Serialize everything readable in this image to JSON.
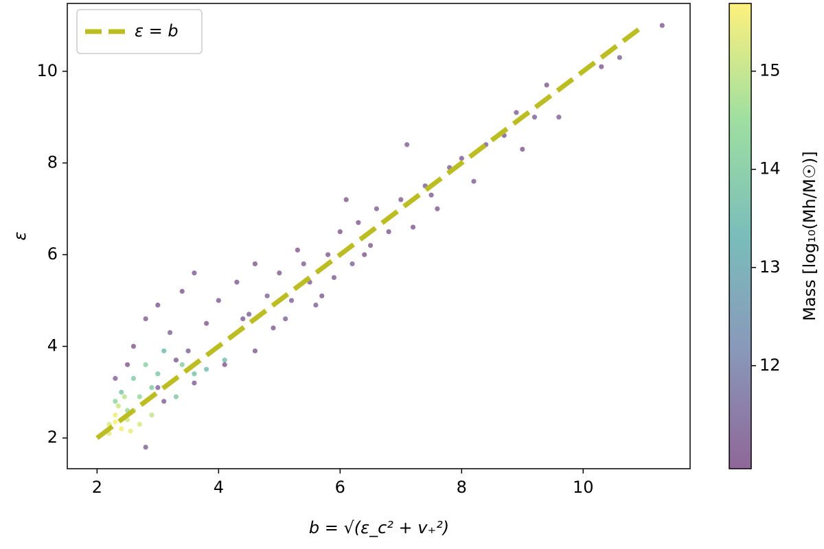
{
  "chart_data": {
    "type": "scatter",
    "x_label": "b = √(ε_c² + v₊²)",
    "y_label": "ε",
    "colorbar_label": "Mass [log₁₀(Mh/M☉)]",
    "colormap": "viridis",
    "alpha": 0.55,
    "x": [
      2.6,
      2.8,
      3.0,
      3.2,
      3.4,
      3.6,
      3.5,
      3.8,
      4.0,
      4.2,
      4.3,
      4.5,
      4.6,
      4.8,
      4.9,
      5.0,
      5.2,
      5.3,
      5.5,
      5.6,
      5.8,
      5.9,
      6.0,
      6.2,
      6.3,
      6.5,
      6.6,
      6.8,
      7.0,
      7.1,
      7.2,
      7.4,
      7.6,
      7.8,
      8.0,
      8.2,
      8.4,
      8.7,
      9.0,
      9.2,
      9.4,
      9.6,
      10.3,
      10.6,
      11.3,
      3.1,
      3.6,
      4.1,
      4.6,
      5.1,
      5.7,
      2.8,
      2.5,
      2.3,
      3.3,
      4.4,
      5.4,
      6.4,
      7.5,
      3.0,
      6.1,
      8.9,
      2.4,
      2.6,
      2.8,
      3.0,
      3.2,
      3.4,
      3.6,
      3.8,
      2.3,
      2.7,
      2.9,
      3.1,
      3.3,
      2.5,
      4.1,
      2.2,
      2.3,
      2.4,
      2.5,
      2.6,
      2.2,
      2.35,
      2.7,
      2.45,
      2.9,
      2.55,
      2.3
    ],
    "values": [
      4.0,
      4.6,
      4.9,
      4.3,
      5.2,
      5.6,
      3.9,
      4.5,
      5.0,
      4.2,
      5.4,
      4.7,
      5.8,
      5.1,
      4.4,
      5.6,
      5.0,
      6.1,
      5.4,
      4.9,
      6.0,
      5.5,
      6.5,
      5.8,
      6.7,
      6.2,
      7.0,
      6.5,
      7.2,
      8.4,
      6.6,
      7.5,
      7.0,
      7.9,
      8.1,
      7.6,
      8.4,
      8.6,
      8.3,
      9.0,
      9.7,
      9.0,
      10.1,
      10.3,
      11.0,
      2.8,
      3.2,
      3.6,
      3.9,
      4.6,
      5.1,
      1.8,
      3.6,
      3.3,
      3.7,
      4.6,
      5.8,
      6.0,
      7.3,
      3.1,
      7.2,
      9.1,
      3.0,
      3.3,
      3.6,
      3.4,
      3.2,
      3.6,
      3.4,
      3.5,
      2.8,
      2.9,
      3.1,
      3.9,
      2.9,
      2.6,
      3.7,
      2.3,
      2.5,
      2.2,
      2.4,
      2.6,
      2.1,
      2.7,
      2.3,
      2.9,
      2.5,
      2.15,
      2.35
    ],
    "mass": [
      11.1,
      11.2,
      11.05,
      11.3,
      11.1,
      11.15,
      11.2,
      11.05,
      11.1,
      11.25,
      11.1,
      11.2,
      11.05,
      11.3,
      11.1,
      11.15,
      11.2,
      11.05,
      11.1,
      11.25,
      11.1,
      11.2,
      11.05,
      11.3,
      11.1,
      11.15,
      11.2,
      11.05,
      11.1,
      11.25,
      11.1,
      11.2,
      11.05,
      11.3,
      11.1,
      11.15,
      11.2,
      11.05,
      11.1,
      11.25,
      11.1,
      11.2,
      11.05,
      11.3,
      11.1,
      11.15,
      11.2,
      11.05,
      11.1,
      11.25,
      11.1,
      11.2,
      11.05,
      11.3,
      11.1,
      11.15,
      11.2,
      11.05,
      11.1,
      11.25,
      11.1,
      11.2,
      13.8,
      14.0,
      14.2,
      13.9,
      13.6,
      14.1,
      13.7,
      13.5,
      14.3,
      14.4,
      14.0,
      13.4,
      13.9,
      14.5,
      13.6,
      15.3,
      15.5,
      15.6,
      15.2,
      15.0,
      15.4,
      15.1,
      15.3,
      14.9,
      15.0,
      15.5,
      15.6
    ],
    "lines": [
      {
        "name": "ε = b",
        "color": "#bcbd22",
        "dashed": true,
        "x": [
          2,
          11
        ],
        "values": [
          2,
          11
        ]
      }
    ],
    "legend": "upper left",
    "xlim": [
      1.51,
      11.76
    ],
    "xticks": [
      2,
      4,
      6,
      8,
      10
    ],
    "ylim": [
      1.33,
      11.48
    ],
    "yticks": [
      2,
      4,
      6,
      8,
      10
    ],
    "clim": [
      10.95,
      15.69
    ],
    "cticks": [
      12,
      13,
      14,
      15
    ]
  }
}
